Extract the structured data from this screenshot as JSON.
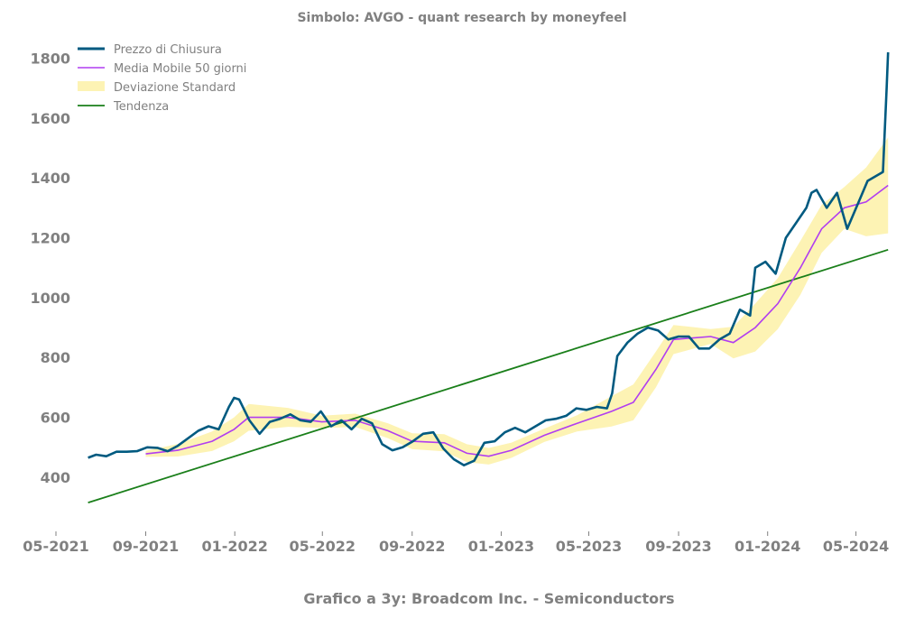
{
  "chart_data": {
    "type": "line",
    "title": "Simbolo: AVGO - quant research by moneyfeel",
    "footer": "Grafico a 3y: Broadcom Inc. - Semiconductors",
    "xlabel": "",
    "ylabel": "",
    "x_ticks": [
      "05-2021",
      "09-2021",
      "01-2022",
      "05-2022",
      "09-2022",
      "01-2023",
      "05-2023",
      "09-2023",
      "01-2024",
      "05-2024"
    ],
    "y_ticks": [
      400,
      600,
      800,
      1000,
      1200,
      1400,
      1600,
      1800
    ],
    "xlim": [
      "2021-05-01",
      "2024-06-15"
    ],
    "ylim": [
      240,
      1880
    ],
    "grid": false,
    "legend_position": "top-left",
    "colors": {
      "price": "#005a80",
      "ma50": "#b13df0",
      "band": "#fdf3b4",
      "trend": "#1a7f1a",
      "text": "#808080"
    },
    "series": [
      {
        "name": "Prezzo di Chiusura",
        "points": [
          [
            "2021-06-14",
            465
          ],
          [
            "2021-06-25",
            475
          ],
          [
            "2021-07-09",
            470
          ],
          [
            "2021-07-23",
            485
          ],
          [
            "2021-08-06",
            485
          ],
          [
            "2021-08-20",
            487
          ],
          [
            "2021-09-03",
            500
          ],
          [
            "2021-09-17",
            498
          ],
          [
            "2021-10-01",
            487
          ],
          [
            "2021-10-15",
            505
          ],
          [
            "2021-10-29",
            530
          ],
          [
            "2021-11-12",
            555
          ],
          [
            "2021-11-26",
            570
          ],
          [
            "2021-12-10",
            560
          ],
          [
            "2021-12-24",
            635
          ],
          [
            "2021-12-31",
            665
          ],
          [
            "2022-01-07",
            660
          ],
          [
            "2022-01-21",
            590
          ],
          [
            "2022-02-04",
            545
          ],
          [
            "2022-02-18",
            585
          ],
          [
            "2022-03-04",
            595
          ],
          [
            "2022-03-18",
            610
          ],
          [
            "2022-04-01",
            590
          ],
          [
            "2022-04-15",
            585
          ],
          [
            "2022-04-29",
            620
          ],
          [
            "2022-05-13",
            570
          ],
          [
            "2022-05-27",
            590
          ],
          [
            "2022-06-10",
            560
          ],
          [
            "2022-06-24",
            595
          ],
          [
            "2022-07-08",
            580
          ],
          [
            "2022-07-22",
            510
          ],
          [
            "2022-08-05",
            490
          ],
          [
            "2022-08-19",
            500
          ],
          [
            "2022-09-02",
            520
          ],
          [
            "2022-09-16",
            545
          ],
          [
            "2022-09-30",
            550
          ],
          [
            "2022-10-14",
            495
          ],
          [
            "2022-10-28",
            460
          ],
          [
            "2022-11-11",
            440
          ],
          [
            "2022-11-25",
            455
          ],
          [
            "2022-12-09",
            515
          ],
          [
            "2022-12-23",
            520
          ],
          [
            "2023-01-06",
            550
          ],
          [
            "2023-01-20",
            565
          ],
          [
            "2023-02-03",
            550
          ],
          [
            "2023-02-17",
            570
          ],
          [
            "2023-03-03",
            590
          ],
          [
            "2023-03-17",
            595
          ],
          [
            "2023-03-31",
            605
          ],
          [
            "2023-04-14",
            630
          ],
          [
            "2023-04-28",
            625
          ],
          [
            "2023-05-12",
            635
          ],
          [
            "2023-05-26",
            630
          ],
          [
            "2023-06-02",
            680
          ],
          [
            "2023-06-09",
            805
          ],
          [
            "2023-06-23",
            850
          ],
          [
            "2023-07-07",
            880
          ],
          [
            "2023-07-21",
            900
          ],
          [
            "2023-08-04",
            890
          ],
          [
            "2023-08-18",
            860
          ],
          [
            "2023-09-01",
            870
          ],
          [
            "2023-09-15",
            870
          ],
          [
            "2023-09-29",
            830
          ],
          [
            "2023-10-13",
            830
          ],
          [
            "2023-10-27",
            860
          ],
          [
            "2023-11-10",
            880
          ],
          [
            "2023-11-24",
            960
          ],
          [
            "2023-12-08",
            940
          ],
          [
            "2023-12-15",
            1100
          ],
          [
            "2023-12-29",
            1120
          ],
          [
            "2024-01-12",
            1080
          ],
          [
            "2024-01-26",
            1200
          ],
          [
            "2024-02-09",
            1250
          ],
          [
            "2024-02-23",
            1300
          ],
          [
            "2024-03-01",
            1350
          ],
          [
            "2024-03-08",
            1360
          ],
          [
            "2024-03-22",
            1300
          ],
          [
            "2024-04-05",
            1350
          ],
          [
            "2024-04-19",
            1230
          ],
          [
            "2024-05-03",
            1310
          ],
          [
            "2024-05-17",
            1390
          ],
          [
            "2024-06-07",
            1420
          ],
          [
            "2024-06-12",
            1700
          ],
          [
            "2024-06-14",
            1820
          ]
        ]
      },
      {
        "name": "Media Mobile 50 giorni",
        "points": [
          [
            "2021-09-01",
            478
          ],
          [
            "2021-10-15",
            490
          ],
          [
            "2021-12-01",
            520
          ],
          [
            "2021-12-31",
            560
          ],
          [
            "2022-01-20",
            600
          ],
          [
            "2022-03-15",
            600
          ],
          [
            "2022-04-30",
            585
          ],
          [
            "2022-06-15",
            590
          ],
          [
            "2022-07-30",
            555
          ],
          [
            "2022-09-01",
            520
          ],
          [
            "2022-10-15",
            515
          ],
          [
            "2022-11-15",
            480
          ],
          [
            "2022-12-15",
            470
          ],
          [
            "2023-01-15",
            490
          ],
          [
            "2023-03-01",
            540
          ],
          [
            "2023-04-15",
            580
          ],
          [
            "2023-06-01",
            620
          ],
          [
            "2023-07-01",
            650
          ],
          [
            "2023-08-01",
            760
          ],
          [
            "2023-08-25",
            860
          ],
          [
            "2023-10-15",
            870
          ],
          [
            "2023-11-15",
            850
          ],
          [
            "2023-12-15",
            900
          ],
          [
            "2024-01-15",
            980
          ],
          [
            "2024-02-15",
            1100
          ],
          [
            "2024-03-15",
            1230
          ],
          [
            "2024-04-15",
            1300
          ],
          [
            "2024-05-15",
            1320
          ],
          [
            "2024-06-14",
            1375
          ]
        ]
      },
      {
        "name": "Deviazione Standard",
        "band_width": [
          [
            "2021-09-01",
            10
          ],
          [
            "2021-12-31",
            40
          ],
          [
            "2022-01-20",
            45
          ],
          [
            "2022-05-01",
            20
          ],
          [
            "2022-08-01",
            25
          ],
          [
            "2022-11-15",
            30
          ],
          [
            "2023-04-01",
            20
          ],
          [
            "2023-06-20",
            60
          ],
          [
            "2023-08-01",
            60
          ],
          [
            "2023-10-15",
            25
          ],
          [
            "2023-12-15",
            80
          ],
          [
            "2024-02-15",
            90
          ],
          [
            "2024-04-15",
            70
          ],
          [
            "2024-06-14",
            160
          ]
        ]
      },
      {
        "name": "Tendenza",
        "points": [
          [
            "2021-06-14",
            315
          ],
          [
            "2024-06-14",
            1160
          ]
        ]
      }
    ]
  }
}
